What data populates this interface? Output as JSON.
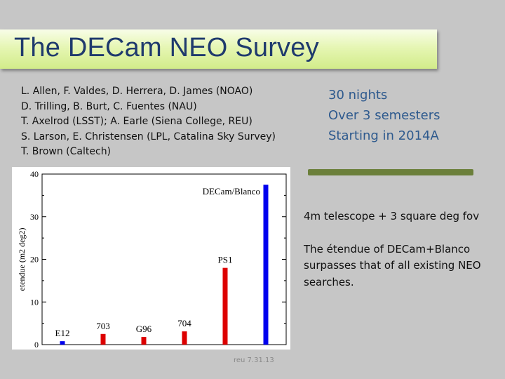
{
  "slide": {
    "title": "The DECam NEO Survey",
    "footer": "reu 7.31.13"
  },
  "authors": [
    "L. Allen, F. Valdes, D. Herrera, D. James (NOAO)",
    "D. Trilling, B. Burt, C. Fuentes (NAU)",
    "T. Axelrod (LSST); A. Earle (Siena College, REU)",
    "S. Larson, E. Christensen (LPL, Catalina Sky Survey)",
    "T. Brown (Caltech)"
  ],
  "survey_info": [
    "30 nights",
    "Over 3 semesters",
    "Starting in 2014A"
  ],
  "facts": {
    "line1": "4m telescope + 3 square deg fov",
    "line2": "The étendue of DECam+Blanco surpasses that of all existing NEO searches."
  },
  "colors": {
    "title_text": "#1f3a6d",
    "survey_info_text": "#2e5a8e",
    "divider": "#6b7f3a",
    "bar_blue": "#0000ee",
    "bar_red": "#dd0000"
  },
  "chart_data": {
    "type": "bar",
    "ylabel": "etendue (m2 deg2)",
    "xlabel": "",
    "ylim": [
      0,
      40
    ],
    "yticks": [
      0,
      10,
      20,
      30,
      40
    ],
    "grid": false,
    "legend": "none",
    "bars": [
      {
        "label": "E12",
        "value": 0.8,
        "color": "blue"
      },
      {
        "label": "703",
        "value": 2.5,
        "color": "red"
      },
      {
        "label": "G96",
        "value": 1.8,
        "color": "red"
      },
      {
        "label": "704",
        "value": 3.1,
        "color": "red"
      },
      {
        "label": "PS1",
        "value": 18.0,
        "color": "red"
      },
      {
        "label": "DECam/Blanco",
        "value": 37.5,
        "color": "blue"
      }
    ]
  }
}
